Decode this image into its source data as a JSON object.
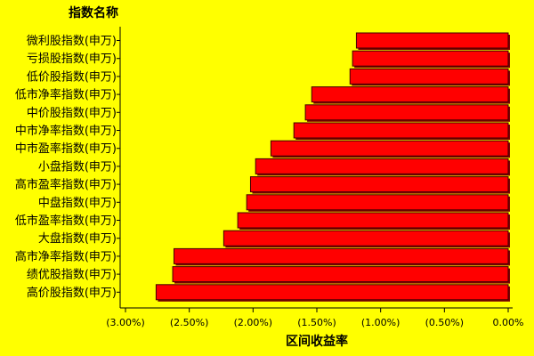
{
  "chart_data": {
    "type": "barh",
    "title": "指数名称",
    "xlabel": "区间收益率",
    "categories": [
      "微利股指数(申万)",
      "亏损股指数(申万)",
      "低价股指数(申万)",
      "低市净率指数(申万)",
      "中价股指数(申万)",
      "中市净率指数(申万)",
      "中市盈率指数(申万)",
      "小盘指数(申万)",
      "高市盈率指数(申万)",
      "中盘指数(申万)",
      "低市盈率指数(申万)",
      "大盘指数(申万)",
      "高市净率指数(申万)",
      "绩优股指数(申万)",
      "高价股指数(申万)"
    ],
    "values": [
      -1.19,
      -1.22,
      -1.24,
      -1.54,
      -1.59,
      -1.68,
      -1.86,
      -1.98,
      -2.02,
      -2.05,
      -2.12,
      -2.23,
      -2.62,
      -2.63,
      -2.76
    ],
    "color": "#ff0000",
    "xlim": [
      -3,
      0
    ],
    "xticks": [
      {
        "value": -3,
        "label": "(3.00%)"
      },
      {
        "value": -2.5,
        "label": "(2.50%)"
      },
      {
        "value": -2,
        "label": "(2.00%)"
      },
      {
        "value": -1.5,
        "label": "(1.50%)"
      },
      {
        "value": -1,
        "label": "(1.00%)"
      },
      {
        "value": -0.5,
        "label": "(0.50%)"
      },
      {
        "value": 0,
        "label": "0.00%"
      }
    ]
  }
}
